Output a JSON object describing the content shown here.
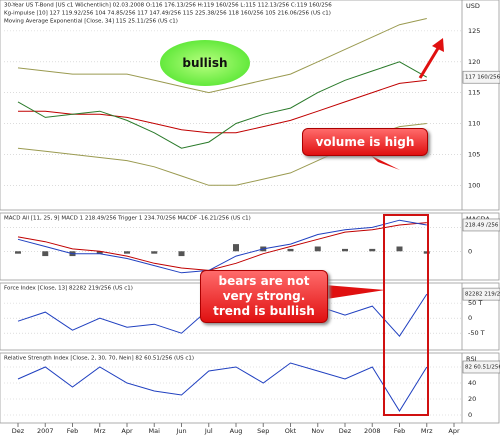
{
  "chart_data": [
    {
      "type": "line",
      "lines": [
        "30-Year US T-Bond [US c1 Wöchentlich] 02.03.2008 O:116 176.13/256 H:119 160/256 L:115 112.13/256 C:119 160/256",
        "Kg-impulse [10] 127 119.92/256 104 74.85/256 117 147.49/256 115 225.38/256 118 160/256 105 216.06/256 (US c1)",
        "Moving Average Exponential [Close, 34] 115 25.11/256 (US c1)"
      ],
      "axis_unit": "USD",
      "price_box": "117 160/256",
      "categories": [
        "Dez",
        "2007",
        "Feb",
        "Mrz",
        "Apr",
        "Mai",
        "Jun",
        "Jul",
        "Aug",
        "Sep",
        "Okt",
        "Nov",
        "Dez",
        "2008",
        "Feb",
        "Mrz",
        "Apr"
      ],
      "ylim": [
        96,
        130
      ],
      "yticks": [
        100,
        105,
        110,
        115,
        120,
        125
      ],
      "grid": true,
      "series": [
        {
          "color": "#9a9a50",
          "values": [
            119,
            118.5,
            118,
            118,
            118,
            117,
            116,
            115,
            116,
            117,
            118,
            120,
            122,
            124,
            126,
            127,
            null
          ]
        },
        {
          "color": "#9a9a50",
          "values": [
            106,
            105.5,
            105,
            104.5,
            104,
            103,
            101.5,
            100,
            100,
            101,
            102,
            104,
            106,
            108,
            109.5,
            110,
            null
          ]
        },
        {
          "color": "#c00000",
          "values": [
            112,
            112,
            111.5,
            111.5,
            111,
            110,
            109,
            108.5,
            108.5,
            109.5,
            110.5,
            112,
            113.5,
            115,
            116.5,
            117,
            null
          ]
        },
        {
          "color": "#2a7a2a",
          "values": [
            113.5,
            111,
            111.5,
            112,
            110.5,
            108.5,
            106,
            107,
            110,
            111.5,
            112.5,
            115,
            117,
            118.5,
            120,
            117.5,
            null
          ]
        }
      ],
      "annotations": [
        "bullish",
        "volume is high"
      ]
    },
    {
      "type": "line",
      "title": "MACD All [11, 25, 9] MACD 1 218.49/256 Trigger 1 234.70/256 MACDF -16.21/256 (US c1)",
      "axis_unit": "MACDA",
      "price_box": "218.49 /256",
      "ylim": [
        -1.2,
        1.6
      ],
      "yticks": [
        0,
        1
      ],
      "grid": true,
      "series": [
        {
          "type": "bar",
          "color": "#555555",
          "values": [
            -0.1,
            -0.2,
            -0.2,
            -0.1,
            -0.1,
            -0.1,
            -0.2,
            0,
            0.3,
            0.2,
            0.1,
            0.2,
            0.1,
            0.1,
            0.2,
            -0.1,
            null
          ]
        },
        {
          "color": "#c00000",
          "values": [
            0.6,
            0.4,
            0.1,
            0,
            -0.2,
            -0.5,
            -0.7,
            -0.8,
            -0.5,
            -0.1,
            0.2,
            0.5,
            0.8,
            0.9,
            1.1,
            1.2,
            null
          ]
        },
        {
          "color": "#2040c0",
          "values": [
            0.5,
            0.2,
            -0.1,
            -0.1,
            -0.3,
            -0.6,
            -0.9,
            -0.8,
            -0.2,
            0.1,
            0.3,
            0.7,
            0.9,
            1.0,
            1.3,
            1.1,
            null
          ]
        }
      ]
    },
    {
      "type": "line",
      "title": "Force Index [Close, 13] 82282 219/256 (US c1)",
      "price_box": "82282 219/256",
      "ylim": [
        -106000,
        117000
      ],
      "yticks": [
        {
          "value": 50000,
          "label": "50 T"
        },
        0,
        {
          "value": -50000,
          "label": "-50 T"
        }
      ],
      "grid": true,
      "series": [
        {
          "color": "#2040c0",
          "values": [
            -10000,
            20000,
            -40000,
            0,
            -30000,
            -20000,
            -50000,
            30000,
            20000,
            -10000,
            30000,
            40000,
            10000,
            40000,
            -60000,
            80000,
            null
          ]
        }
      ],
      "annotations": [
        "bears are not very strong. trend is bullish"
      ]
    },
    {
      "type": "line",
      "title": "Relative Strength Index [Close, 2, 30, 70, Nein] 82 60.51/256 (US c1)",
      "axis_unit": "RSI",
      "price_box": "82 60.51/256",
      "ylim": [
        -10,
        77.5
      ],
      "yticks": [
        0,
        20,
        40,
        60
      ],
      "grid": true,
      "series": [
        {
          "color": "#2040c0",
          "values": [
            45,
            60,
            35,
            60,
            40,
            30,
            25,
            55,
            60,
            40,
            65,
            55,
            45,
            60,
            5,
            60,
            null
          ]
        }
      ]
    }
  ]
}
